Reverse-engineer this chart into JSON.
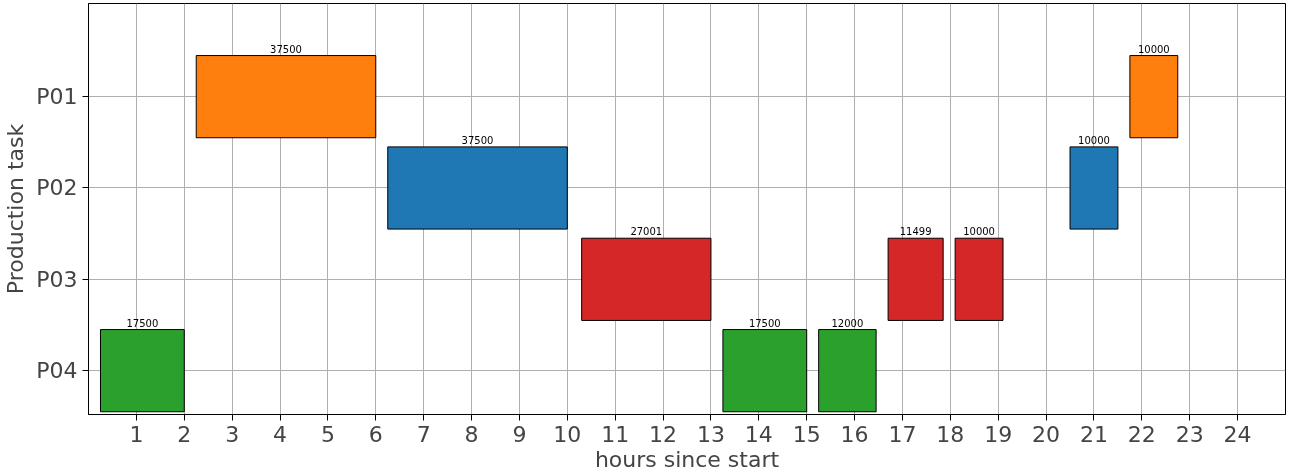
{
  "chart_data": {
    "type": "bar",
    "orientation": "horizontal",
    "xlabel": "hours since start",
    "ylabel": "Production task",
    "categories": [
      "P01",
      "P02",
      "P03",
      "P04"
    ],
    "series": [
      {
        "colors": [
          "#ff7f0e",
          "#1f77b4",
          "#d62728",
          "#2ca02c"
        ],
        "base": [
          2.25,
          6.25,
          10.3,
          0.25
        ],
        "values": [
          3.75,
          3.75,
          2.7,
          1.75
        ]
      },
      {
        "colors": [
          "#ff7f0e",
          "#1f77b4",
          "#d62728",
          "#2ca02c"
        ],
        "base": [
          21.75,
          20.5,
          16.7,
          13.25
        ],
        "values": [
          1.0,
          1.0,
          1.15,
          1.75
        ]
      },
      {
        "colors": [
          null,
          null,
          "#d62728",
          "#2ca02c"
        ],
        "base": [
          null,
          null,
          18.1,
          15.25
        ],
        "values": [
          null,
          null,
          1.0,
          1.2
        ]
      }
    ],
    "annotations": [
      "37500",
      "37500",
      "27001",
      "17500",
      "10000",
      "10000",
      "11499",
      "17500",
      "10000",
      "12000"
    ],
    "xlim": [
      0,
      25
    ],
    "xticks": [
      1,
      2,
      3,
      4,
      5,
      6,
      7,
      8,
      9,
      10,
      11,
      12,
      13,
      14,
      15,
      16,
      17,
      18,
      19,
      20,
      21,
      22,
      23,
      24
    ],
    "grid": true
  }
}
